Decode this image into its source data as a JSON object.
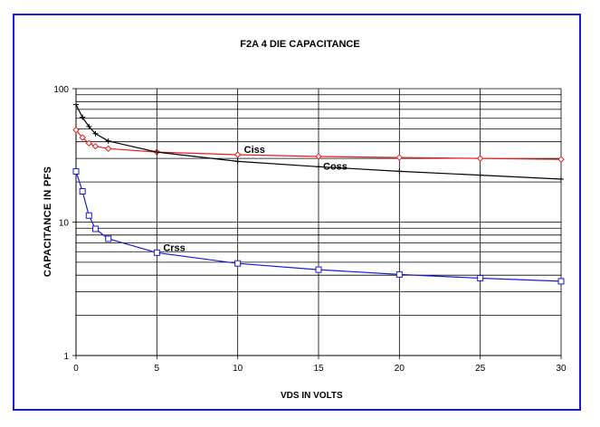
{
  "chart_data": {
    "type": "line",
    "title": "F2A 4 DIE CAPACITANCE",
    "xlabel": "VDS IN VOLTS",
    "ylabel": "CAPACITANCE IN PFS",
    "xlim": [
      0,
      30
    ],
    "ylim": [
      1,
      100
    ],
    "y_scale": "log",
    "grid": true,
    "x_ticks": [
      0,
      5,
      10,
      15,
      20,
      25,
      30
    ],
    "y_tick_labels": [
      "1",
      "10",
      "100"
    ],
    "series": [
      {
        "name": "Ciss",
        "color": "#e3201b",
        "marker": "diamond",
        "x": [
          0,
          0.4,
          0.8,
          1.2,
          2,
          5,
          10,
          15,
          20,
          25,
          30
        ],
        "y": [
          49,
          43,
          39,
          37,
          35.5,
          33.5,
          32,
          31,
          30.5,
          30,
          29.5
        ]
      },
      {
        "name": "Coss",
        "color": "#000000",
        "marker": "cross",
        "x": [
          0,
          0.4,
          0.8,
          1.2,
          2,
          5,
          10,
          15,
          20,
          25,
          30
        ],
        "y": [
          76,
          61,
          52,
          46,
          40.5,
          33.5,
          28.5,
          26,
          24,
          22.5,
          21
        ]
      },
      {
        "name": "Crss",
        "color": "#1a1ad6",
        "marker": "square",
        "x": [
          0,
          0.4,
          0.8,
          1.2,
          2,
          5,
          10,
          15,
          20,
          25,
          30
        ],
        "y": [
          24,
          17,
          11.2,
          8.9,
          7.5,
          5.9,
          4.9,
          4.4,
          4.05,
          3.8,
          3.6
        ]
      }
    ]
  }
}
